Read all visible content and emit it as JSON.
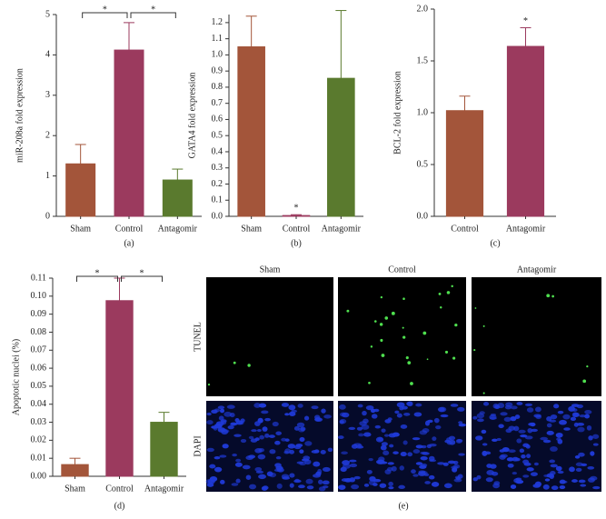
{
  "chart_data": [
    {
      "type": "bar",
      "ylabel": "miR-208a fold expression",
      "caption": "(a)",
      "categories": [
        "Sham",
        "Control",
        "Antagomir"
      ],
      "values": [
        1.3,
        4.12,
        0.9
      ],
      "errors": [
        0.48,
        0.68,
        0.27
      ],
      "colors": [
        "#a3553a",
        "#9b3a5e",
        "#5a7a2e"
      ],
      "ylim": [
        0,
        5
      ],
      "yticks": [
        0,
        1,
        2,
        3,
        4,
        5
      ],
      "significance": [
        {
          "label": "*",
          "categories": [
            "Sham",
            "Control"
          ]
        },
        {
          "label": "*",
          "categories": [
            "Control",
            "Antagomir"
          ]
        }
      ]
    },
    {
      "type": "bar",
      "ylabel": "GATA4 fold expression",
      "caption": "(b)",
      "categories": [
        "Sham",
        "Control",
        "Antagomir"
      ],
      "values": [
        1.05,
        0.005,
        0.855
      ],
      "errors": [
        0.19,
        0.005,
        0.42
      ],
      "colors": [
        "#a3553a",
        "#9b3a5e",
        "#5a7a2e"
      ],
      "ylim": [
        0,
        1.25
      ],
      "yticks": [
        {
          "value": 0,
          "label": "0.0"
        },
        0.1,
        0.2,
        0.3,
        0.4,
        0.5,
        0.6,
        0.7,
        0.8,
        0.9,
        {
          "value": 1,
          "label": "1.0"
        },
        1.1,
        1.2
      ],
      "significance": [
        {
          "label": "*",
          "categories": [
            "Control"
          ]
        }
      ]
    },
    {
      "type": "bar",
      "ylabel": "BCL-2 fold expression",
      "caption": "(c)",
      "categories": [
        "Control",
        "Antagomir"
      ],
      "values": [
        1.02,
        1.64
      ],
      "errors": [
        0.14,
        0.18
      ],
      "colors": [
        "#a3553a",
        "#9b3a5e"
      ],
      "ylim": [
        0,
        2
      ],
      "yticks": [
        {
          "value": 0,
          "label": "0.0"
        },
        0.5,
        {
          "value": 1,
          "label": "1.0"
        },
        1.5,
        {
          "value": 2,
          "label": "2.0"
        }
      ],
      "significance": [
        {
          "label": "*",
          "categories": [
            "Antagomir"
          ]
        }
      ]
    },
    {
      "type": "bar",
      "ylabel": "Apoptotic nuclei (%)",
      "caption": "(d)",
      "categories": [
        "Sham",
        "Control",
        "Antagomir"
      ],
      "values": [
        0.0065,
        0.0975,
        0.03
      ],
      "errors": [
        0.0035,
        0.0125,
        0.0055
      ],
      "colors": [
        "#a3553a",
        "#9b3a5e",
        "#5a7a2e"
      ],
      "ylim": [
        0,
        0.11
      ],
      "yticks": [
        {
          "value": 0,
          "label": "0.00"
        },
        0.01,
        0.02,
        0.03,
        0.04,
        0.05,
        0.06,
        0.07,
        0.08,
        0.09,
        {
          "value": 0.1,
          "label": "0.10"
        },
        0.11
      ],
      "significance": [
        {
          "label": "*",
          "categories": [
            "Sham",
            "Control"
          ]
        },
        {
          "label": "*",
          "categories": [
            "Control",
            "Antagomir"
          ]
        }
      ]
    }
  ],
  "image_panel": {
    "caption": "(e)",
    "columns": [
      "Sham",
      "Control",
      "Antagomir"
    ],
    "rows": [
      "TUNEL",
      "DAPI"
    ]
  }
}
